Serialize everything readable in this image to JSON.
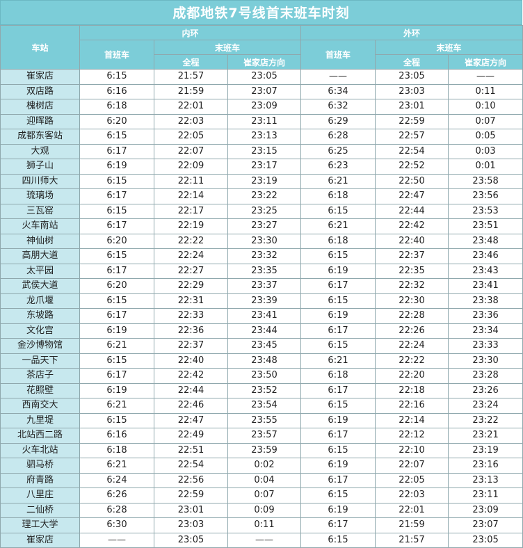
{
  "title": "成都地铁7号线首末班车时刻",
  "headers": {
    "station": "车站",
    "inner_loop": "内环",
    "outer_loop": "外环",
    "first_train": "首班车",
    "last_train": "末班车",
    "full_route": "全程",
    "cuijiadian_direction": "崔家店方向"
  },
  "rows": [
    {
      "station": "崔家店",
      "inner_first": "6:15",
      "inner_full": "21:57",
      "inner_cjd": "23:05",
      "outer_first": "——",
      "outer_full": "23:05",
      "outer_cjd": "——"
    },
    {
      "station": "双店路",
      "inner_first": "6:16",
      "inner_full": "21:59",
      "inner_cjd": "23:07",
      "outer_first": "6:34",
      "outer_full": "23:03",
      "outer_cjd": "0:11"
    },
    {
      "station": "槐树店",
      "inner_first": "6:18",
      "inner_full": "22:01",
      "inner_cjd": "23:09",
      "outer_first": "6:32",
      "outer_full": "23:01",
      "outer_cjd": "0:10"
    },
    {
      "station": "迎晖路",
      "inner_first": "6:20",
      "inner_full": "22:03",
      "inner_cjd": "23:11",
      "outer_first": "6:29",
      "outer_full": "22:59",
      "outer_cjd": "0:07"
    },
    {
      "station": "成都东客站",
      "inner_first": "6:15",
      "inner_full": "22:05",
      "inner_cjd": "23:13",
      "outer_first": "6:28",
      "outer_full": "22:57",
      "outer_cjd": "0:05"
    },
    {
      "station": "大观",
      "inner_first": "6:17",
      "inner_full": "22:07",
      "inner_cjd": "23:15",
      "outer_first": "6:25",
      "outer_full": "22:54",
      "outer_cjd": "0:03"
    },
    {
      "station": "狮子山",
      "inner_first": "6:19",
      "inner_full": "22:09",
      "inner_cjd": "23:17",
      "outer_first": "6:23",
      "outer_full": "22:52",
      "outer_cjd": "0:01"
    },
    {
      "station": "四川师大",
      "inner_first": "6:15",
      "inner_full": "22:11",
      "inner_cjd": "23:19",
      "outer_first": "6:21",
      "outer_full": "22:50",
      "outer_cjd": "23:58"
    },
    {
      "station": "琉璃场",
      "inner_first": "6:17",
      "inner_full": "22:14",
      "inner_cjd": "23:22",
      "outer_first": "6:18",
      "outer_full": "22:47",
      "outer_cjd": "23:56"
    },
    {
      "station": "三瓦窑",
      "inner_first": "6:15",
      "inner_full": "22:17",
      "inner_cjd": "23:25",
      "outer_first": "6:15",
      "outer_full": "22:44",
      "outer_cjd": "23:53"
    },
    {
      "station": "火车南站",
      "inner_first": "6:17",
      "inner_full": "22:19",
      "inner_cjd": "23:27",
      "outer_first": "6:21",
      "outer_full": "22:42",
      "outer_cjd": "23:51"
    },
    {
      "station": "神仙树",
      "inner_first": "6:20",
      "inner_full": "22:22",
      "inner_cjd": "23:30",
      "outer_first": "6:18",
      "outer_full": "22:40",
      "outer_cjd": "23:48"
    },
    {
      "station": "高朋大道",
      "inner_first": "6:15",
      "inner_full": "22:24",
      "inner_cjd": "23:32",
      "outer_first": "6:15",
      "outer_full": "22:37",
      "outer_cjd": "23:46"
    },
    {
      "station": "太平园",
      "inner_first": "6:17",
      "inner_full": "22:27",
      "inner_cjd": "23:35",
      "outer_first": "6:19",
      "outer_full": "22:35",
      "outer_cjd": "23:43"
    },
    {
      "station": "武侯大道",
      "inner_first": "6:20",
      "inner_full": "22:29",
      "inner_cjd": "23:37",
      "outer_first": "6:17",
      "outer_full": "22:32",
      "outer_cjd": "23:41"
    },
    {
      "station": "龙爪堰",
      "inner_first": "6:15",
      "inner_full": "22:31",
      "inner_cjd": "23:39",
      "outer_first": "6:15",
      "outer_full": "22:30",
      "outer_cjd": "23:38"
    },
    {
      "station": "东坡路",
      "inner_first": "6:17",
      "inner_full": "22:33",
      "inner_cjd": "23:41",
      "outer_first": "6:19",
      "outer_full": "22:28",
      "outer_cjd": "23:36"
    },
    {
      "station": "文化宫",
      "inner_first": "6:19",
      "inner_full": "22:36",
      "inner_cjd": "23:44",
      "outer_first": "6:17",
      "outer_full": "22:26",
      "outer_cjd": "23:34"
    },
    {
      "station": "金沙博物馆",
      "inner_first": "6:21",
      "inner_full": "22:37",
      "inner_cjd": "23:45",
      "outer_first": "6:15",
      "outer_full": "22:24",
      "outer_cjd": "23:33"
    },
    {
      "station": "一品天下",
      "inner_first": "6:15",
      "inner_full": "22:40",
      "inner_cjd": "23:48",
      "outer_first": "6:21",
      "outer_full": "22:22",
      "outer_cjd": "23:30"
    },
    {
      "station": "茶店子",
      "inner_first": "6:17",
      "inner_full": "22:42",
      "inner_cjd": "23:50",
      "outer_first": "6:18",
      "outer_full": "22:20",
      "outer_cjd": "23:28"
    },
    {
      "station": "花照壁",
      "inner_first": "6:19",
      "inner_full": "22:44",
      "inner_cjd": "23:52",
      "outer_first": "6:17",
      "outer_full": "22:18",
      "outer_cjd": "23:26"
    },
    {
      "station": "西南交大",
      "inner_first": "6:21",
      "inner_full": "22:46",
      "inner_cjd": "23:54",
      "outer_first": "6:15",
      "outer_full": "22:16",
      "outer_cjd": "23:24"
    },
    {
      "station": "九里堤",
      "inner_first": "6:15",
      "inner_full": "22:47",
      "inner_cjd": "23:55",
      "outer_first": "6:19",
      "outer_full": "22:14",
      "outer_cjd": "23:22"
    },
    {
      "station": "北站西二路",
      "inner_first": "6:16",
      "inner_full": "22:49",
      "inner_cjd": "23:57",
      "outer_first": "6:17",
      "outer_full": "22:12",
      "outer_cjd": "23:21"
    },
    {
      "station": "火车北站",
      "inner_first": "6:18",
      "inner_full": "22:51",
      "inner_cjd": "23:59",
      "outer_first": "6:15",
      "outer_full": "22:10",
      "outer_cjd": "23:19"
    },
    {
      "station": "驷马桥",
      "inner_first": "6:21",
      "inner_full": "22:54",
      "inner_cjd": "0:02",
      "outer_first": "6:19",
      "outer_full": "22:07",
      "outer_cjd": "23:16"
    },
    {
      "station": "府青路",
      "inner_first": "6:24",
      "inner_full": "22:56",
      "inner_cjd": "0:04",
      "outer_first": "6:17",
      "outer_full": "22:05",
      "outer_cjd": "23:13"
    },
    {
      "station": "八里庄",
      "inner_first": "6:26",
      "inner_full": "22:59",
      "inner_cjd": "0:07",
      "outer_first": "6:15",
      "outer_full": "22:03",
      "outer_cjd": "23:11"
    },
    {
      "station": "二仙桥",
      "inner_first": "6:28",
      "inner_full": "23:01",
      "inner_cjd": "0:09",
      "outer_first": "6:19",
      "outer_full": "22:01",
      "outer_cjd": "23:09"
    },
    {
      "station": "理工大学",
      "inner_first": "6:30",
      "inner_full": "23:03",
      "inner_cjd": "0:11",
      "outer_first": "6:17",
      "outer_full": "21:59",
      "outer_cjd": "23:07"
    },
    {
      "station": "崔家店",
      "inner_first": "——",
      "inner_full": "23:05",
      "inner_cjd": "——",
      "outer_first": "6:15",
      "outer_full": "21:57",
      "outer_cjd": "23:05"
    }
  ],
  "colors": {
    "header_bg": "#7ccdd8",
    "station_bg": "#c7e8ee",
    "border": "#8fa8ad"
  }
}
